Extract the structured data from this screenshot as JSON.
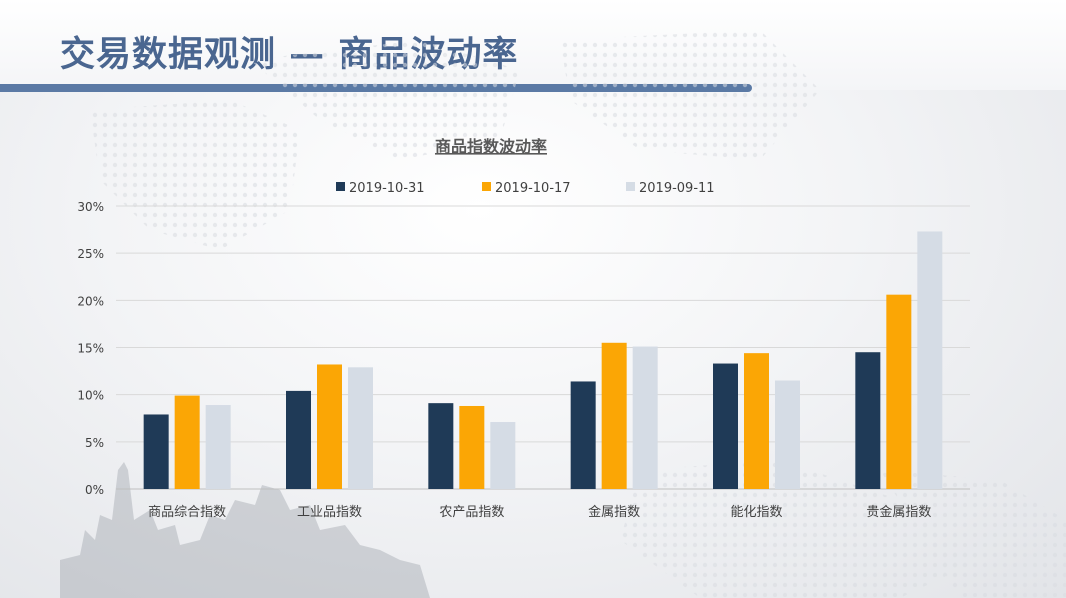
{
  "slide": {
    "title": "交易数据观测 — 商品波动率"
  },
  "colors": {
    "title": "#4a6690",
    "title_bar": "#5b7aa5"
  },
  "chart_data": {
    "type": "bar",
    "title": "商品指数波动率",
    "categories": [
      "商品综合指数",
      "工业品指数",
      "农产品指数",
      "金属指数",
      "能化指数",
      "贵金属指数"
    ],
    "series": [
      {
        "name": "2019-10-31",
        "color": "#1f3a57",
        "values": [
          7.9,
          10.4,
          9.1,
          11.4,
          13.3,
          14.5
        ]
      },
      {
        "name": "2019-10-17",
        "color": "#fba605",
        "values": [
          9.9,
          13.2,
          8.8,
          15.5,
          14.4,
          20.6
        ]
      },
      {
        "name": "2019-09-11",
        "color": "#d5dce5",
        "values": [
          8.9,
          12.9,
          7.1,
          15.1,
          11.5,
          27.3
        ]
      }
    ],
    "ylim": [
      0,
      30
    ],
    "yticks": [
      0,
      5,
      10,
      15,
      20,
      25,
      30
    ],
    "ytick_labels": [
      "0%",
      "5%",
      "10%",
      "15%",
      "20%",
      "25%",
      "30%"
    ],
    "xlabel": "",
    "ylabel": "",
    "grid": true,
    "legend_position": "top"
  }
}
